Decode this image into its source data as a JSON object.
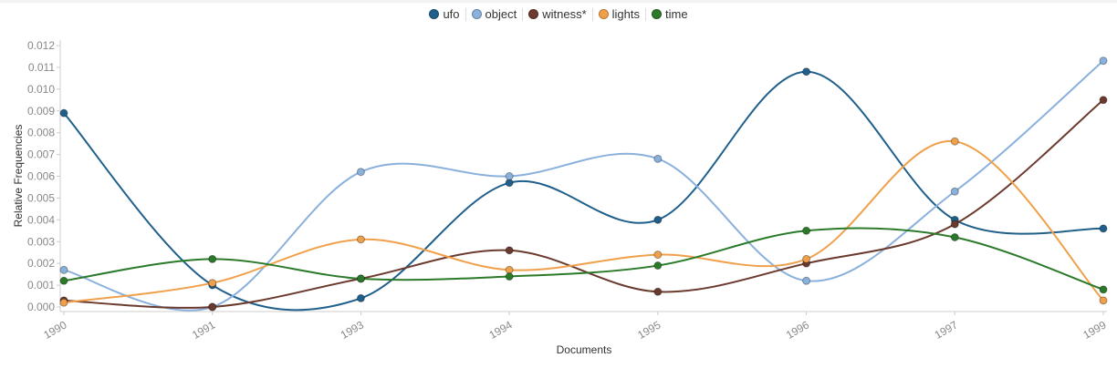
{
  "chart_data": {
    "type": "line",
    "xlabel": "Documents",
    "ylabel": "Relative Frequencies",
    "categories": [
      "1990",
      "1991",
      "1993",
      "1994",
      "1995",
      "1996",
      "1997",
      "1999"
    ],
    "ylim": [
      0,
      0.012
    ],
    "yticks": [
      "0.000",
      "0.001",
      "0.002",
      "0.003",
      "0.004",
      "0.005",
      "0.006",
      "0.007",
      "0.008",
      "0.009",
      "0.010",
      "0.011",
      "0.012"
    ],
    "grid": false,
    "legend_position": "top-center",
    "series": [
      {
        "name": "ufo",
        "color": "#1f5f8b",
        "values": [
          0.0089,
          0.001,
          0.0004,
          0.0057,
          0.004,
          0.0108,
          0.004,
          0.0036
        ]
      },
      {
        "name": "object",
        "color": "#8ab0dc",
        "values": [
          0.0017,
          0.0,
          0.0062,
          0.006,
          0.0068,
          0.0012,
          0.0053,
          0.0113
        ]
      },
      {
        "name": "witness*",
        "color": "#6b3a2e",
        "values": [
          0.0003,
          0.0,
          0.0013,
          0.0026,
          0.0007,
          0.002,
          0.0038,
          0.0095
        ]
      },
      {
        "name": "lights",
        "color": "#f0a04b",
        "values": [
          0.0002,
          0.0011,
          0.0031,
          0.0017,
          0.0024,
          0.0022,
          0.0076,
          0.0003
        ]
      },
      {
        "name": "time",
        "color": "#2a7a2a",
        "values": [
          0.0012,
          0.0022,
          0.0013,
          0.0014,
          0.0019,
          0.0035,
          0.0032,
          0.0008
        ]
      }
    ]
  }
}
